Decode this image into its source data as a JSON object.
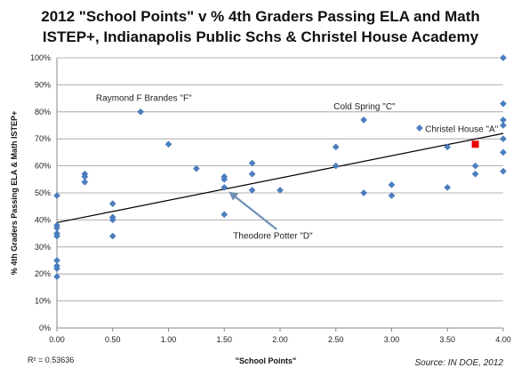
{
  "chart_data": {
    "type": "scatter",
    "title_line1": "2012 \"School Points\" v % 4th Graders Passing ELA and Math",
    "title_line2": "ISTEP+, Indianapolis Public Schs & Christel House Academy",
    "xlabel": "\"School Points\"",
    "ylabel": "% 4th Graders Passing ELA & Math ISTEP+",
    "xlim": [
      0,
      4
    ],
    "ylim": [
      0,
      100
    ],
    "x_ticks": [
      "0.00",
      "0.50",
      "1.00",
      "1.50",
      "2.00",
      "2.50",
      "3.00",
      "3.50",
      "4.00"
    ],
    "y_ticks": [
      "0%",
      "10%",
      "20%",
      "30%",
      "40%",
      "50%",
      "60%",
      "70%",
      "80%",
      "90%",
      "100%"
    ],
    "grid": "horizontal",
    "legend": "none",
    "trendline": {
      "intercept": 39,
      "slope": 8.25
    },
    "r_squared": "R² = 0.53636",
    "source": "Source: IN DOE, 2012",
    "colors": {
      "points": "#4a7ebf",
      "highlight": "#ee0000",
      "trendline": "#000000",
      "annotation_highlight": "#cc2222"
    },
    "points": [
      {
        "x": 0,
        "y": 49
      },
      {
        "x": 0,
        "y": 38
      },
      {
        "x": 0,
        "y": 37
      },
      {
        "x": 0,
        "y": 35
      },
      {
        "x": 0,
        "y": 34
      },
      {
        "x": 0,
        "y": 25
      },
      {
        "x": 0,
        "y": 23
      },
      {
        "x": 0,
        "y": 22
      },
      {
        "x": 0,
        "y": 19
      },
      {
        "x": 0.25,
        "y": 57
      },
      {
        "x": 0.25,
        "y": 56
      },
      {
        "x": 0.25,
        "y": 54
      },
      {
        "x": 0.5,
        "y": 46
      },
      {
        "x": 0.5,
        "y": 41
      },
      {
        "x": 0.5,
        "y": 40
      },
      {
        "x": 0.5,
        "y": 34
      },
      {
        "x": 0.75,
        "y": 80
      },
      {
        "x": 1.0,
        "y": 68
      },
      {
        "x": 1.25,
        "y": 59
      },
      {
        "x": 1.5,
        "y": 56
      },
      {
        "x": 1.5,
        "y": 55
      },
      {
        "x": 1.5,
        "y": 52
      },
      {
        "x": 1.5,
        "y": 42
      },
      {
        "x": 1.75,
        "y": 61
      },
      {
        "x": 1.75,
        "y": 57
      },
      {
        "x": 1.75,
        "y": 51
      },
      {
        "x": 2.0,
        "y": 51
      },
      {
        "x": 2.5,
        "y": 67
      },
      {
        "x": 2.5,
        "y": 60
      },
      {
        "x": 2.75,
        "y": 77
      },
      {
        "x": 2.75,
        "y": 50
      },
      {
        "x": 3.0,
        "y": 53
      },
      {
        "x": 3.0,
        "y": 49
      },
      {
        "x": 3.25,
        "y": 74
      },
      {
        "x": 3.5,
        "y": 67
      },
      {
        "x": 3.5,
        "y": 52
      },
      {
        "x": 3.75,
        "y": 60
      },
      {
        "x": 3.75,
        "y": 57
      },
      {
        "x": 4.0,
        "y": 100
      },
      {
        "x": 4.0,
        "y": 83
      },
      {
        "x": 4.0,
        "y": 77
      },
      {
        "x": 4.0,
        "y": 75
      },
      {
        "x": 4.0,
        "y": 70
      },
      {
        "x": 4.0,
        "y": 65
      },
      {
        "x": 4.0,
        "y": 58
      }
    ],
    "highlight_point": {
      "x": 3.75,
      "y": 68
    },
    "annotations": [
      {
        "text": "Raymond F Brandes \"F\"",
        "x": 0.35,
        "y": 84
      },
      {
        "text": "Cold Spring \"C\"",
        "x": 2.48,
        "y": 81
      },
      {
        "text": "Christel House \"A\"",
        "x": 3.3,
        "y": 72.5,
        "highlight": true
      },
      {
        "text": "Theodore Potter \"D\"",
        "x": 1.58,
        "y": 33
      }
    ],
    "arrow": {
      "from": {
        "x": 1.97,
        "y": 36.5
      },
      "to": {
        "x": 1.54,
        "y": 50.5
      }
    }
  }
}
